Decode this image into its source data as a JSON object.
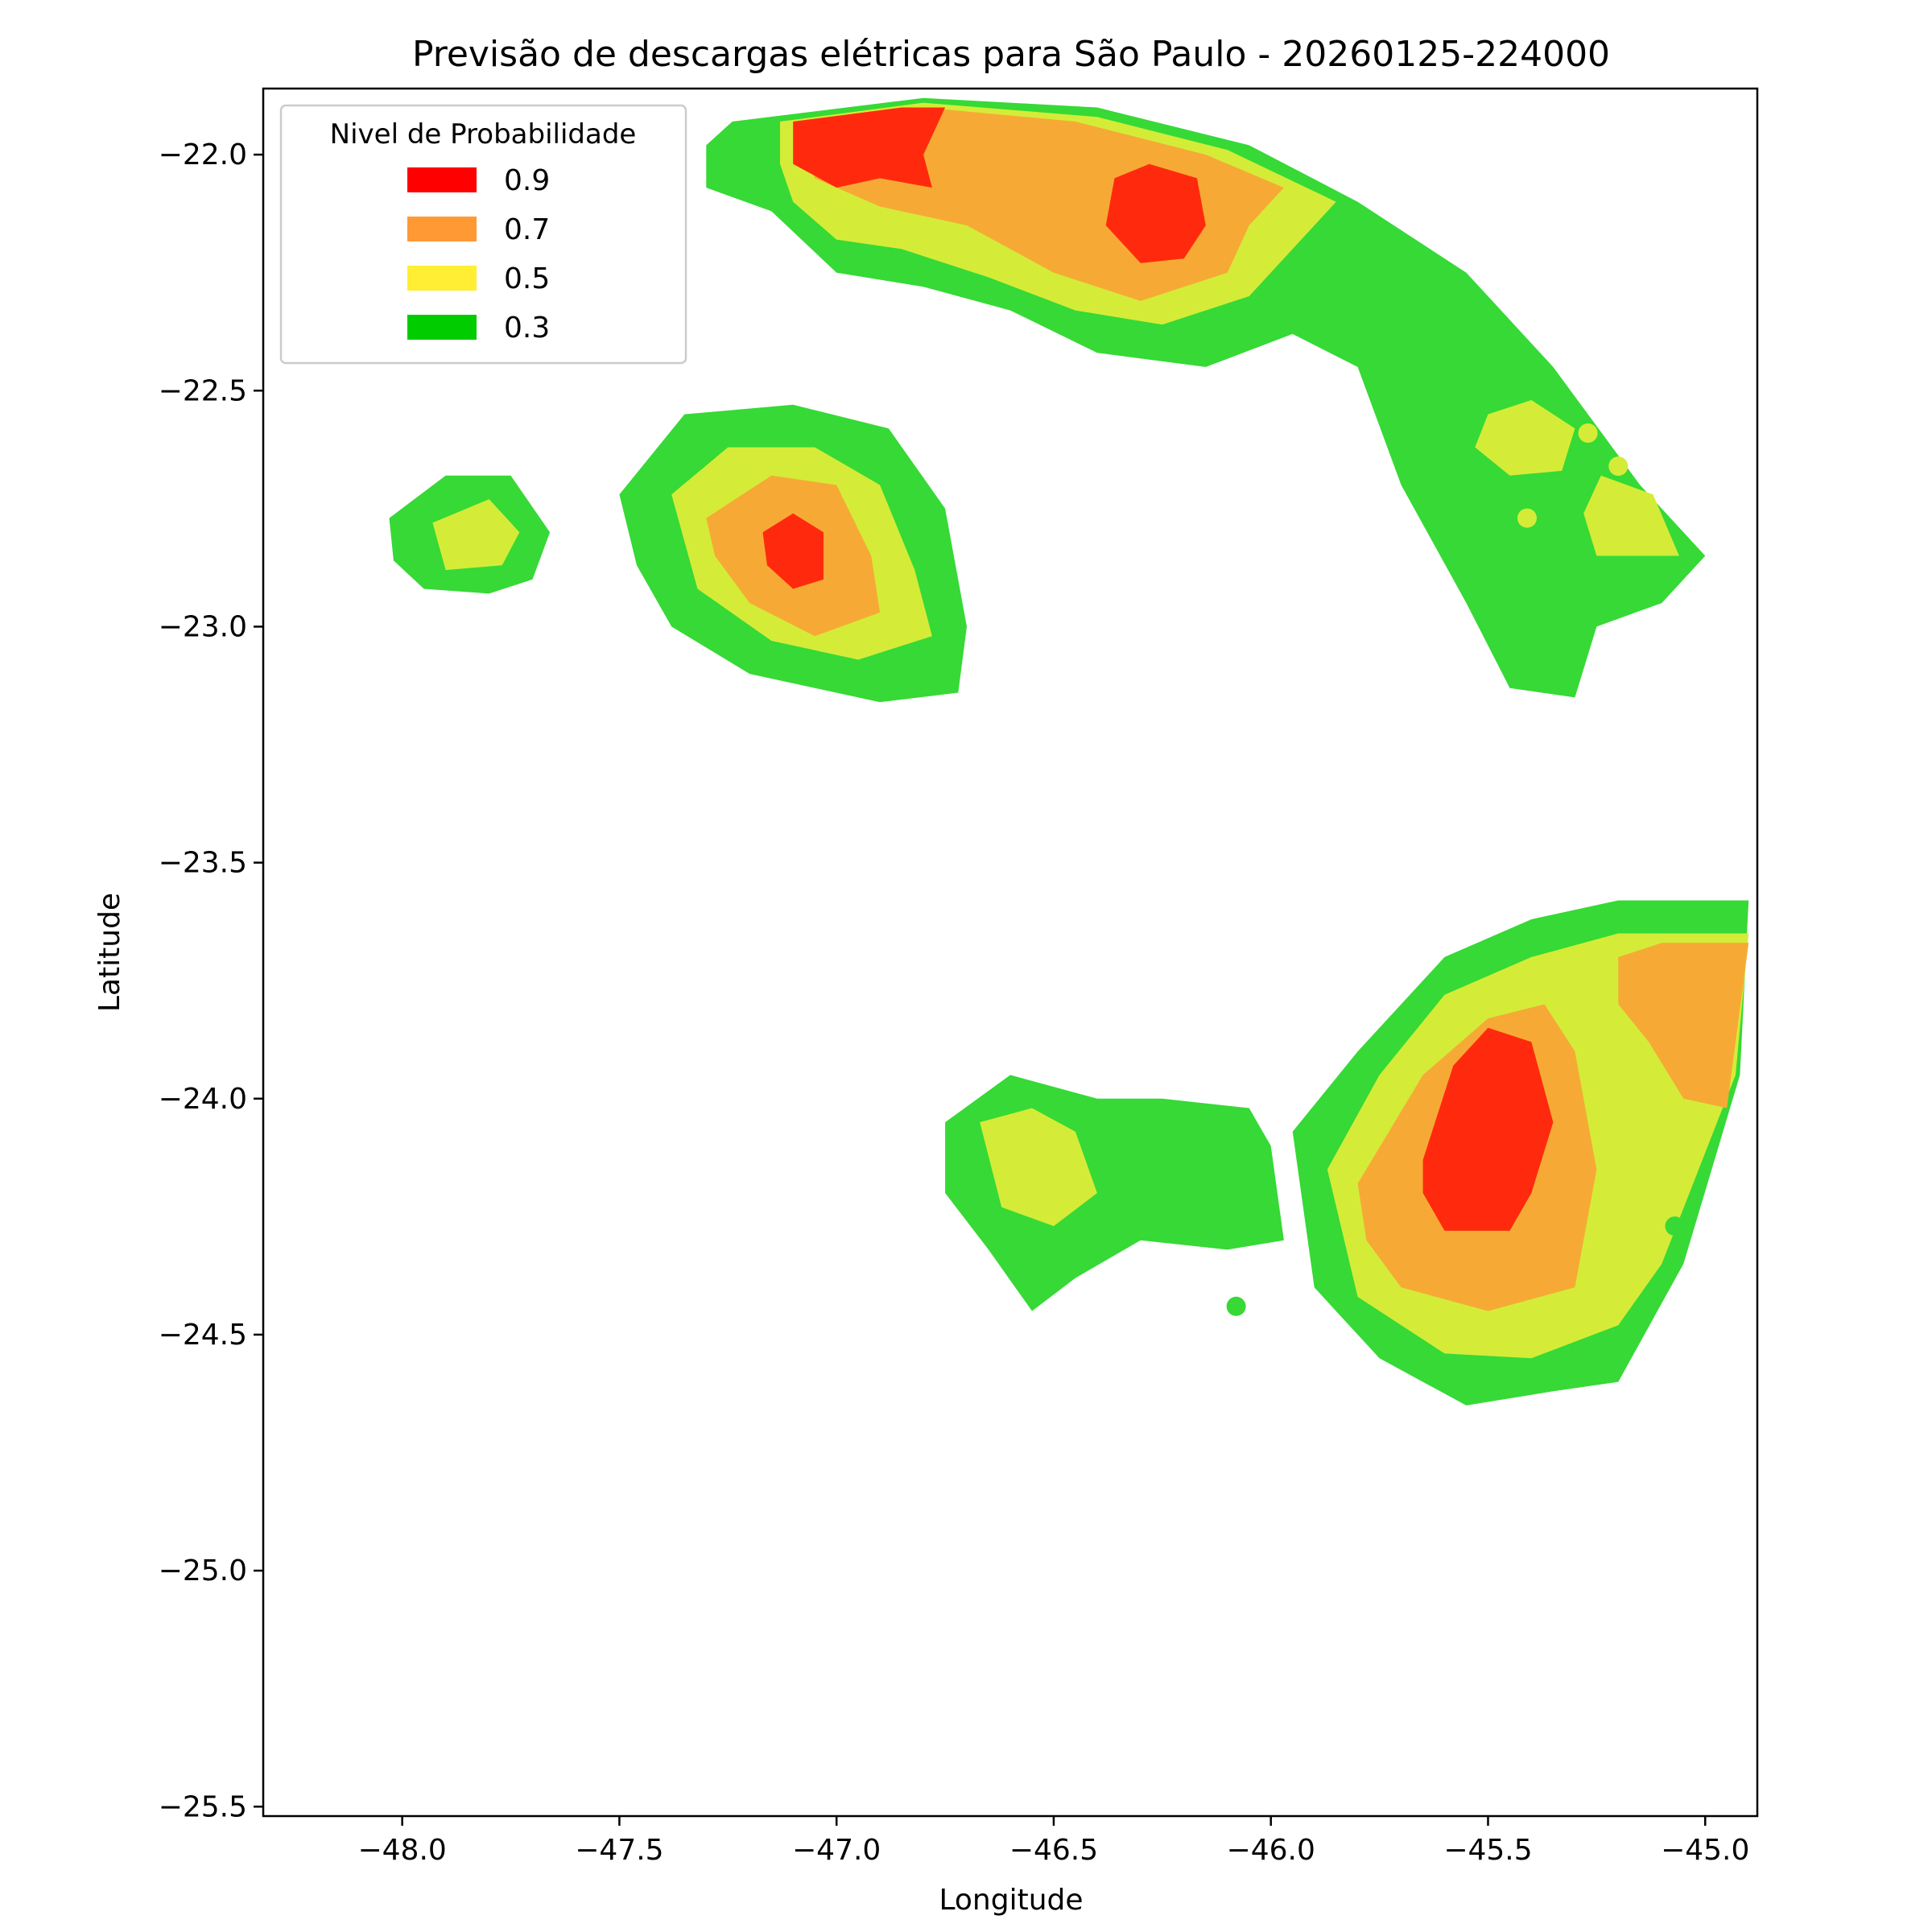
{
  "chart_data": {
    "type": "filled-contour",
    "title": "Previsão de descargas elétricas para São Paulo - 20260125-224000",
    "xlabel": "Longitude",
    "ylabel": "Latitude",
    "xlim": [
      -48.32,
      -44.88
    ],
    "ylim": [
      -25.52,
      -21.86
    ],
    "xticks": [
      -48.0,
      -47.5,
      -47.0,
      -46.5,
      -46.0,
      -45.5,
      -45.0
    ],
    "xtick_labels": [
      "−48.0",
      "−47.5",
      "−47.0",
      "−46.5",
      "−46.0",
      "−45.5",
      "−45.0"
    ],
    "yticks": [
      -22.0,
      -22.5,
      -23.0,
      -23.5,
      -24.0,
      -24.5,
      -25.0,
      -25.5
    ],
    "ytick_labels": [
      "−22.0",
      "−22.5",
      "−23.0",
      "−23.5",
      "−24.0",
      "−24.5",
      "−25.0",
      "−25.5"
    ],
    "legend": {
      "title": "Nivel de Probabilidade",
      "placement": "top-left",
      "items": [
        {
          "label": "0.9",
          "color": "#ff0000"
        },
        {
          "label": "0.7",
          "color": "#ff9933"
        },
        {
          "label": "0.5",
          "color": "#ffee33"
        },
        {
          "label": "0.3",
          "color": "#00cc00"
        }
      ]
    },
    "level_fill_colors": {
      "0.3": "#36d936",
      "0.5": "#d4ec38",
      "0.7": "#f6aa35",
      "0.9": "#ff2a0d"
    },
    "regions": [
      {
        "name": "north-arc",
        "level": 0.3,
        "points": [
          [
            -47.24,
            -21.93
          ],
          [
            -46.8,
            -21.88
          ],
          [
            -46.4,
            -21.9
          ],
          [
            -46.05,
            -21.98
          ],
          [
            -45.8,
            -22.1
          ],
          [
            -45.55,
            -22.25
          ],
          [
            -45.35,
            -22.45
          ],
          [
            -45.15,
            -22.7
          ],
          [
            -45.0,
            -22.85
          ],
          [
            -45.1,
            -22.95
          ],
          [
            -45.25,
            -23.0
          ],
          [
            -45.3,
            -23.15
          ],
          [
            -45.45,
            -23.13
          ],
          [
            -45.55,
            -22.95
          ],
          [
            -45.7,
            -22.7
          ],
          [
            -45.8,
            -22.45
          ],
          [
            -45.95,
            -22.38
          ],
          [
            -46.15,
            -22.45
          ],
          [
            -46.4,
            -22.42
          ],
          [
            -46.6,
            -22.33
          ],
          [
            -46.8,
            -22.28
          ],
          [
            -47.0,
            -22.25
          ],
          [
            -47.15,
            -22.12
          ],
          [
            -47.3,
            -22.07
          ],
          [
            -47.3,
            -21.98
          ]
        ]
      },
      {
        "name": "north-arc",
        "level": 0.5,
        "points": [
          [
            -47.13,
            -21.93
          ],
          [
            -46.8,
            -21.89
          ],
          [
            -46.4,
            -21.92
          ],
          [
            -46.1,
            -21.99
          ],
          [
            -45.85,
            -22.1
          ],
          [
            -45.95,
            -22.2
          ],
          [
            -46.05,
            -22.3
          ],
          [
            -46.25,
            -22.36
          ],
          [
            -46.45,
            -22.33
          ],
          [
            -46.65,
            -22.26
          ],
          [
            -46.85,
            -22.2
          ],
          [
            -47.0,
            -22.18
          ],
          [
            -47.1,
            -22.1
          ],
          [
            -47.13,
            -22.02
          ]
        ]
      },
      {
        "name": "north-arc",
        "level": 0.7,
        "points": [
          [
            -47.09,
            -21.93
          ],
          [
            -46.8,
            -21.9
          ],
          [
            -46.45,
            -21.93
          ],
          [
            -46.15,
            -22.0
          ],
          [
            -45.97,
            -22.07
          ],
          [
            -46.05,
            -22.15
          ],
          [
            -46.1,
            -22.25
          ],
          [
            -46.3,
            -22.31
          ],
          [
            -46.5,
            -22.25
          ],
          [
            -46.7,
            -22.15
          ],
          [
            -46.9,
            -22.11
          ],
          [
            -47.05,
            -22.05
          ]
        ]
      },
      {
        "name": "north-arc",
        "level": 0.9,
        "points": [
          [
            -47.1,
            -21.93
          ],
          [
            -46.85,
            -21.9
          ],
          [
            -46.75,
            -21.9
          ],
          [
            -46.8,
            -22.0
          ],
          [
            -46.78,
            -22.07
          ],
          [
            -46.9,
            -22.05
          ],
          [
            -47.0,
            -22.07
          ],
          [
            -47.1,
            -22.02
          ]
        ]
      },
      {
        "name": "north-arc",
        "level": 0.9,
        "points": [
          [
            -46.36,
            -22.05
          ],
          [
            -46.28,
            -22.02
          ],
          [
            -46.17,
            -22.05
          ],
          [
            -46.15,
            -22.15
          ],
          [
            -46.2,
            -22.22
          ],
          [
            -46.3,
            -22.23
          ],
          [
            -46.38,
            -22.15
          ]
        ]
      },
      {
        "name": "northeast-strip-yellow-1",
        "level": 0.5,
        "points": [
          [
            -45.5,
            -22.55
          ],
          [
            -45.4,
            -22.52
          ],
          [
            -45.3,
            -22.58
          ],
          [
            -45.33,
            -22.67
          ],
          [
            -45.45,
            -22.68
          ],
          [
            -45.53,
            -22.62
          ]
        ]
      },
      {
        "name": "northeast-strip-yellow-2",
        "level": 0.5,
        "points": [
          [
            -45.24,
            -22.68
          ],
          [
            -45.12,
            -22.72
          ],
          [
            -45.06,
            -22.85
          ],
          [
            -45.25,
            -22.85
          ],
          [
            -45.28,
            -22.76
          ]
        ]
      },
      {
        "name": "west-cell",
        "level": 0.3,
        "points": [
          [
            -48.03,
            -22.77
          ],
          [
            -47.9,
            -22.68
          ],
          [
            -47.75,
            -22.68
          ],
          [
            -47.66,
            -22.8
          ],
          [
            -47.7,
            -22.9
          ],
          [
            -47.8,
            -22.93
          ],
          [
            -47.95,
            -22.92
          ],
          [
            -48.02,
            -22.86
          ]
        ]
      },
      {
        "name": "west-cell",
        "level": 0.5,
        "points": [
          [
            -47.93,
            -22.78
          ],
          [
            -47.8,
            -22.73
          ],
          [
            -47.73,
            -22.8
          ],
          [
            -47.77,
            -22.87
          ],
          [
            -47.9,
            -22.88
          ]
        ]
      },
      {
        "name": "central-cell",
        "level": 0.3,
        "points": [
          [
            -47.5,
            -22.72
          ],
          [
            -47.35,
            -22.55
          ],
          [
            -47.1,
            -22.53
          ],
          [
            -46.88,
            -22.58
          ],
          [
            -46.75,
            -22.75
          ],
          [
            -46.7,
            -23.0
          ],
          [
            -46.72,
            -23.14
          ],
          [
            -46.9,
            -23.16
          ],
          [
            -47.2,
            -23.1
          ],
          [
            -47.38,
            -23.0
          ],
          [
            -47.46,
            -22.87
          ]
        ]
      },
      {
        "name": "central-cell",
        "level": 0.5,
        "points": [
          [
            -47.38,
            -22.72
          ],
          [
            -47.25,
            -22.62
          ],
          [
            -47.05,
            -22.62
          ],
          [
            -46.9,
            -22.7
          ],
          [
            -46.82,
            -22.88
          ],
          [
            -46.78,
            -23.02
          ],
          [
            -46.95,
            -23.07
          ],
          [
            -47.15,
            -23.03
          ],
          [
            -47.32,
            -22.92
          ]
        ]
      },
      {
        "name": "central-cell",
        "level": 0.7,
        "points": [
          [
            -47.3,
            -22.77
          ],
          [
            -47.15,
            -22.68
          ],
          [
            -47.0,
            -22.7
          ],
          [
            -46.92,
            -22.85
          ],
          [
            -46.9,
            -22.97
          ],
          [
            -47.05,
            -23.02
          ],
          [
            -47.2,
            -22.95
          ],
          [
            -47.28,
            -22.85
          ]
        ]
      },
      {
        "name": "central-cell",
        "level": 0.9,
        "points": [
          [
            -47.17,
            -22.8
          ],
          [
            -47.1,
            -22.76
          ],
          [
            -47.03,
            -22.8
          ],
          [
            -47.03,
            -22.9
          ],
          [
            -47.1,
            -22.92
          ],
          [
            -47.16,
            -22.87
          ]
        ]
      },
      {
        "name": "south-west-cell",
        "level": 0.3,
        "points": [
          [
            -46.75,
            -24.05
          ],
          [
            -46.6,
            -23.95
          ],
          [
            -46.4,
            -24.0
          ],
          [
            -46.25,
            -24.0
          ],
          [
            -46.05,
            -24.02
          ],
          [
            -46.0,
            -24.1
          ],
          [
            -45.97,
            -24.3
          ],
          [
            -46.1,
            -24.32
          ],
          [
            -46.3,
            -24.3
          ],
          [
            -46.45,
            -24.38
          ],
          [
            -46.55,
            -24.45
          ],
          [
            -46.65,
            -24.32
          ],
          [
            -46.75,
            -24.2
          ]
        ]
      },
      {
        "name": "south-west-cell",
        "level": 0.5,
        "points": [
          [
            -46.67,
            -24.05
          ],
          [
            -46.55,
            -24.02
          ],
          [
            -46.45,
            -24.07
          ],
          [
            -46.4,
            -24.2
          ],
          [
            -46.5,
            -24.27
          ],
          [
            -46.62,
            -24.23
          ]
        ]
      },
      {
        "name": "south-east-cell",
        "level": 0.3,
        "points": [
          [
            -45.95,
            -24.07
          ],
          [
            -45.8,
            -23.9
          ],
          [
            -45.6,
            -23.7
          ],
          [
            -45.4,
            -23.62
          ],
          [
            -45.2,
            -23.58
          ],
          [
            -44.9,
            -23.58
          ],
          [
            -44.92,
            -23.95
          ],
          [
            -45.05,
            -24.35
          ],
          [
            -45.2,
            -24.6
          ],
          [
            -45.35,
            -24.62
          ],
          [
            -45.55,
            -24.65
          ],
          [
            -45.75,
            -24.55
          ],
          [
            -45.9,
            -24.4
          ]
        ]
      },
      {
        "name": "south-east-cell",
        "level": 0.5,
        "points": [
          [
            -45.87,
            -24.15
          ],
          [
            -45.75,
            -23.95
          ],
          [
            -45.6,
            -23.78
          ],
          [
            -45.4,
            -23.7
          ],
          [
            -45.2,
            -23.65
          ],
          [
            -44.9,
            -23.65
          ],
          [
            -44.93,
            -23.95
          ],
          [
            -45.1,
            -24.35
          ],
          [
            -45.2,
            -24.48
          ],
          [
            -45.4,
            -24.55
          ],
          [
            -45.6,
            -24.54
          ],
          [
            -45.8,
            -24.42
          ]
        ]
      },
      {
        "name": "south-east-cell",
        "level": 0.7,
        "points": [
          [
            -45.8,
            -24.18
          ],
          [
            -45.65,
            -23.95
          ],
          [
            -45.5,
            -23.83
          ],
          [
            -45.37,
            -23.8
          ],
          [
            -45.3,
            -23.9
          ],
          [
            -45.25,
            -24.15
          ],
          [
            -45.3,
            -24.4
          ],
          [
            -45.5,
            -24.45
          ],
          [
            -45.7,
            -24.4
          ],
          [
            -45.78,
            -24.3
          ]
        ]
      },
      {
        "name": "south-east-cell",
        "level": 0.9,
        "points": [
          [
            -45.65,
            -24.13
          ],
          [
            -45.58,
            -23.93
          ],
          [
            -45.5,
            -23.85
          ],
          [
            -45.4,
            -23.88
          ],
          [
            -45.35,
            -24.05
          ],
          [
            -45.4,
            -24.2
          ],
          [
            -45.45,
            -24.28
          ],
          [
            -45.6,
            -24.28
          ],
          [
            -45.65,
            -24.2
          ]
        ]
      },
      {
        "name": "south-east-cell-right",
        "level": 0.7,
        "points": [
          [
            -45.2,
            -23.7
          ],
          [
            -45.1,
            -23.67
          ],
          [
            -44.9,
            -23.67
          ],
          [
            -44.95,
            -24.02
          ],
          [
            -45.05,
            -24.0
          ],
          [
            -45.13,
            -23.88
          ],
          [
            -45.2,
            -23.8
          ]
        ]
      }
    ],
    "markers": [
      {
        "lon": -45.27,
        "lat": -22.59,
        "level": 0.5
      },
      {
        "lon": -45.2,
        "lat": -22.66,
        "level": 0.5
      },
      {
        "lon": -45.41,
        "lat": -22.77,
        "level": 0.5
      },
      {
        "lon": -46.08,
        "lat": -24.44,
        "level": 0.3
      },
      {
        "lon": -45.07,
        "lat": -24.27,
        "level": 0.3
      }
    ]
  }
}
